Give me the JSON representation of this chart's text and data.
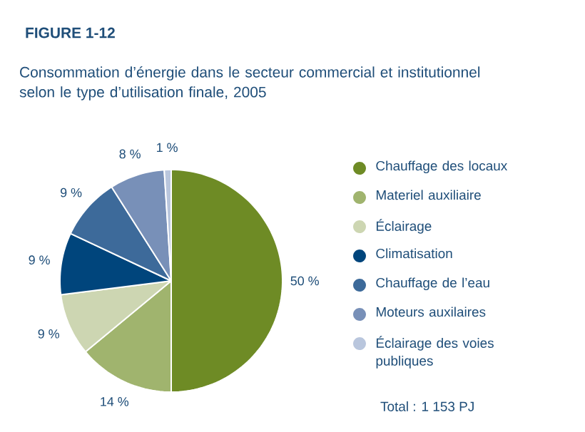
{
  "chart_data": {
    "type": "pie",
    "title": "FIGURE 1-12",
    "subtitle": "Consommation d’énergie dans le secteur commercial et institutionnel selon le type d’utilisation finale, 2005",
    "categories": [
      "Chauffage des locaux",
      "Materiel auxiliaire",
      "Éclairage",
      "Climatisation",
      "Chauffage de l’eau",
      "Moteurs auxilaires",
      "Éclairage des voies publiques"
    ],
    "values": [
      50,
      14,
      9,
      9,
      9,
      8,
      1
    ],
    "value_labels": [
      "50 %",
      "14 %",
      "9 %",
      "9 %",
      "9 %",
      "8 %",
      "1 %"
    ],
    "colors": [
      "#6e8b25",
      "#a0b46e",
      "#cdd6b2",
      "#00457c",
      "#3d6a9a",
      "#7890b8",
      "#b9c6dd"
    ],
    "legend": "right",
    "annotations": [
      "Total : 1 153 PJ"
    ]
  }
}
